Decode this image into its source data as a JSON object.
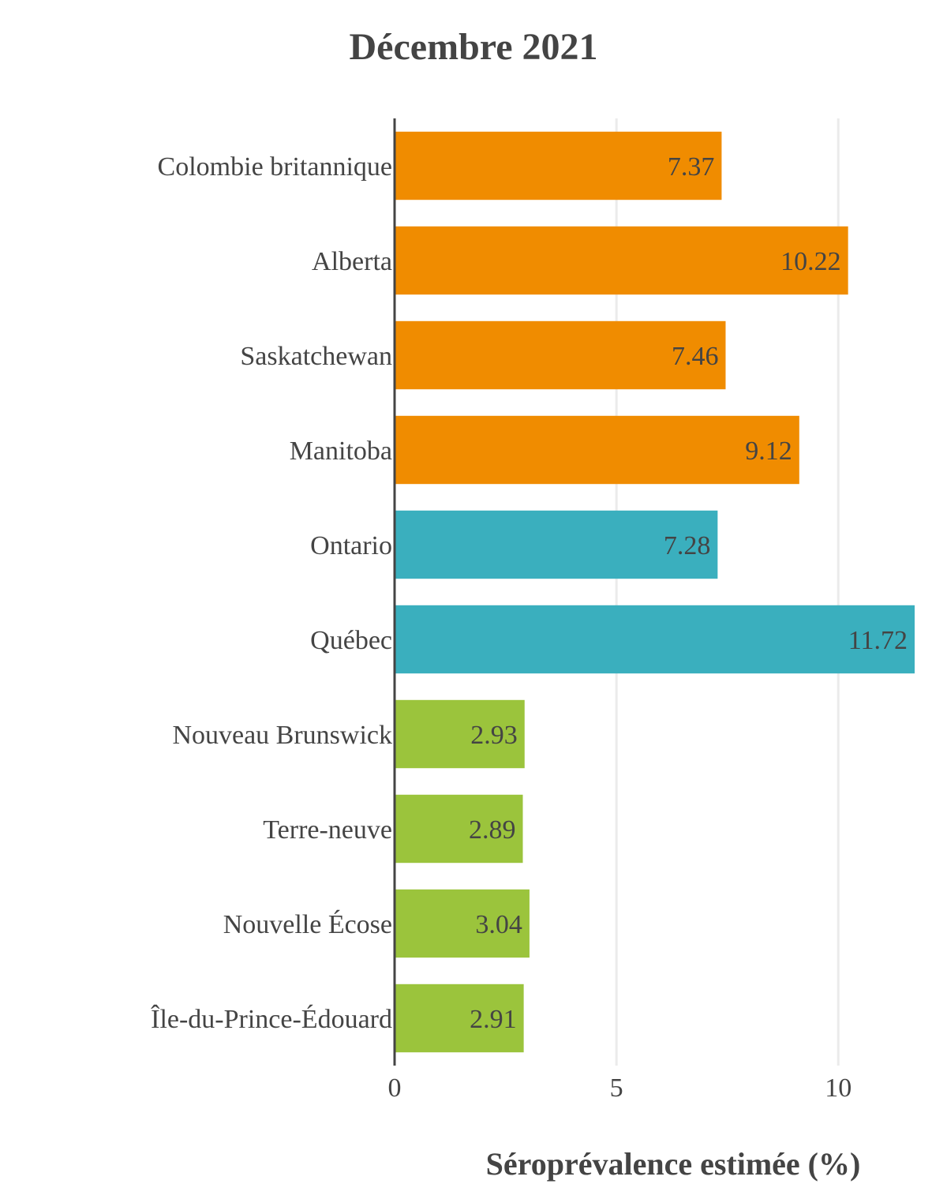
{
  "chart_data": {
    "type": "bar",
    "orientation": "horizontal",
    "title": "Décembre 2021",
    "xlabel": "Séroprévalence estimée (%)",
    "ylabel": "",
    "xlim": [
      0,
      11.72
    ],
    "xticks": [
      0,
      5,
      10
    ],
    "xtick_labels": [
      "0",
      "5",
      "10"
    ],
    "grid": "vertical",
    "legend": "none",
    "categories": [
      "Colombie britannique",
      "Alberta",
      "Saskatchewan",
      "Manitoba",
      "Ontario",
      "Québec",
      "Nouveau Brunswick",
      "Terre-neuve",
      "Nouvelle Écose",
      "Île-du-Prince-Édouard"
    ],
    "values": [
      7.37,
      10.22,
      7.46,
      9.12,
      7.28,
      11.72,
      2.93,
      2.89,
      3.04,
      2.91
    ],
    "value_labels": [
      "7.37",
      "10.22",
      "7.46",
      "9.12",
      "7.28",
      "11.72",
      "2.93",
      "2.89",
      "3.04",
      "2.91"
    ],
    "colors": [
      "#f08c00",
      "#f08c00",
      "#f08c00",
      "#f08c00",
      "#3aafbe",
      "#3aafbe",
      "#9bc43c",
      "#9bc43c",
      "#9bc43c",
      "#9bc43c"
    ]
  }
}
